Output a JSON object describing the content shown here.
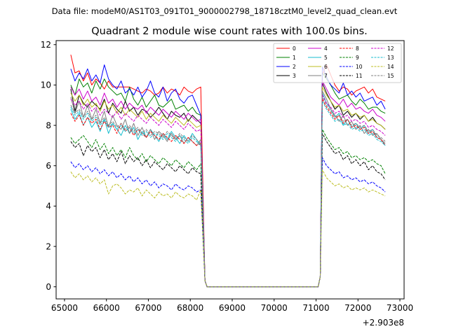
{
  "figure": {
    "header": "Data file: modeM0/AS1T03_091T01_9000002798_18718cztM0_level2_quad_clean.evt",
    "title": "Quadrant 2 module wise count rates with 100.0s bins.",
    "x_offset_label": "+2.903e8"
  },
  "chart_data": {
    "type": "line",
    "title": "Quadrant 2 module wise count rates with 100.0s bins.",
    "xlabel": "",
    "ylabel": "",
    "x_offset": 290300000,
    "xlim": [
      64800,
      73100
    ],
    "ylim": [
      -0.6,
      12.2
    ],
    "xticks": [
      65000,
      66000,
      67000,
      68000,
      69000,
      70000,
      71000,
      72000,
      73000
    ],
    "xtick_labels": [
      "65000",
      "66000",
      "67000",
      "68000",
      "69000",
      "70000",
      "71000",
      "72000",
      "73000"
    ],
    "yticks": [
      0,
      2,
      4,
      6,
      8,
      10,
      12
    ],
    "ytick_labels": [
      "0",
      "2",
      "4",
      "6",
      "8",
      "10",
      "12"
    ],
    "bin_seconds": 100,
    "segments": [
      {
        "start": 65150,
        "end": 68250,
        "count": 32
      },
      {
        "start": 71150,
        "end": 72650,
        "count": 16
      }
    ],
    "gap": {
      "drop_at": 68350,
      "zero_start": 68400,
      "zero_end": 71050
    },
    "legend_position": "top-right",
    "series": [
      {
        "name": "0",
        "color": "#ff0000",
        "dash": "solid",
        "seg1": [
          11.5,
          10.6,
          10.7,
          10.2,
          10.6,
          10.0,
          10.3,
          10.1,
          9.8,
          10.2,
          9.9,
          9.9,
          9.9,
          9.9,
          9.9,
          9.8,
          9.7,
          9.6,
          9.8,
          9.7,
          9.5,
          9.6,
          9.9,
          9.6,
          9.8,
          9.7,
          9.5,
          9.9,
          9.7,
          9.6,
          9.8,
          9.9
        ],
        "seg2": [
          10.5,
          11.0,
          10.5,
          10.0,
          9.7,
          9.9,
          9.8,
          9.5,
          9.7,
          9.8,
          9.9,
          9.6,
          9.8,
          9.4,
          9.3,
          9.2
        ]
      },
      {
        "name": "1",
        "color": "#008000",
        "dash": "solid",
        "seg1": [
          10.0,
          9.5,
          10.3,
          9.9,
          10.1,
          9.6,
          10.2,
          9.8,
          10.3,
          9.9,
          9.7,
          9.5,
          9.6,
          9.2,
          9.9,
          9.3,
          9.0,
          9.4,
          8.9,
          9.2,
          9.5,
          9.0,
          8.9,
          9.1,
          9.3,
          8.8,
          8.9,
          9.0,
          8.7,
          8.9,
          8.6,
          8.5
        ],
        "seg2": [
          10.6,
          10.3,
          10.0,
          9.6,
          9.3,
          9.4,
          9.5,
          9.2,
          9.0,
          9.3,
          9.1,
          8.8,
          8.9,
          8.9,
          8.7,
          8.6
        ]
      },
      {
        "name": "2",
        "color": "#0000ff",
        "dash": "solid",
        "seg1": [
          10.8,
          10.2,
          10.6,
          10.3,
          10.8,
          10.2,
          10.5,
          10.1,
          11.0,
          10.3,
          10.0,
          9.8,
          10.2,
          9.6,
          9.8,
          9.5,
          9.9,
          9.4,
          9.7,
          10.2,
          9.6,
          9.4,
          9.9,
          9.2,
          9.6,
          9.8,
          9.3,
          9.1,
          9.4,
          9.5,
          9.0,
          8.5
        ],
        "seg2": [
          10.9,
          10.4,
          10.0,
          9.8,
          9.6,
          10.1,
          9.5,
          9.7,
          9.4,
          9.6,
          9.2,
          9.3,
          9.4,
          9.0,
          9.2,
          8.8
        ]
      },
      {
        "name": "3",
        "color": "#000000",
        "dash": "solid",
        "seg1": [
          9.8,
          8.7,
          9.5,
          9.1,
          8.9,
          9.2,
          9.0,
          8.8,
          9.3,
          8.6,
          9.1,
          8.8,
          8.6,
          9.2,
          8.7,
          8.9,
          8.5,
          8.8,
          8.7,
          8.4,
          8.6,
          8.9,
          8.6,
          8.3,
          8.7,
          8.5,
          8.4,
          8.6,
          8.2,
          8.5,
          8.3,
          8.1
        ],
        "seg2": [
          10.1,
          9.6,
          9.2,
          8.8,
          9.0,
          8.5,
          8.7,
          8.4,
          8.6,
          8.3,
          8.5,
          8.2,
          8.4,
          8.1,
          8.0,
          7.8
        ]
      },
      {
        "name": "4",
        "color": "#cc00cc",
        "dash": "solid",
        "seg1": [
          9.9,
          9.5,
          9.8,
          9.3,
          9.7,
          9.2,
          9.4,
          9.0,
          9.6,
          9.1,
          9.3,
          8.9,
          9.2,
          8.8,
          9.1,
          8.9,
          8.8,
          9.0,
          8.6,
          8.9,
          8.7,
          8.5,
          8.8,
          8.6,
          8.4,
          8.7,
          8.5,
          8.3,
          8.6,
          8.4,
          8.2,
          8.3
        ],
        "seg2": [
          10.2,
          9.8,
          9.4,
          9.2,
          9.0,
          9.3,
          8.9,
          9.1,
          8.8,
          8.9,
          8.7,
          8.6,
          8.8,
          8.5,
          8.4,
          8.2
        ]
      },
      {
        "name": "5",
        "color": "#17becf",
        "dash": "solid",
        "seg1": [
          8.8,
          8.3,
          8.6,
          8.0,
          8.4,
          7.9,
          8.2,
          7.7,
          8.3,
          7.6,
          8.1,
          7.8,
          7.5,
          8.0,
          7.6,
          7.9,
          7.3,
          7.7,
          7.4,
          7.8,
          7.5,
          7.2,
          7.6,
          7.3,
          7.7,
          7.4,
          7.1,
          7.5,
          7.2,
          7.6,
          7.3,
          7.0
        ],
        "seg2": [
          9.6,
          9.1,
          8.8,
          8.4,
          8.6,
          8.0,
          8.3,
          7.9,
          8.1,
          7.8,
          8.0,
          7.6,
          7.8,
          7.4,
          7.3,
          7.0
        ]
      },
      {
        "name": "6",
        "color": "#bcbd22",
        "dash": "solid",
        "seg1": [
          9.6,
          9.2,
          9.5,
          9.0,
          9.3,
          8.9,
          9.1,
          8.7,
          9.2,
          8.8,
          9.0,
          8.6,
          8.9,
          8.5,
          8.8,
          8.6,
          8.4,
          8.7,
          8.3,
          8.6,
          8.4,
          8.2,
          8.5,
          8.3,
          8.1,
          8.4,
          8.2,
          8.0,
          8.3,
          8.1,
          7.9,
          8.0
        ],
        "seg2": [
          9.9,
          9.5,
          9.2,
          8.9,
          9.0,
          8.7,
          8.8,
          8.5,
          8.6,
          8.4,
          8.5,
          8.2,
          8.3,
          8.1,
          8.0,
          7.8
        ]
      },
      {
        "name": "7",
        "color": "#7f7f7f",
        "dash": "solid",
        "seg1": [
          9.4,
          8.6,
          9.2,
          8.4,
          9.0,
          8.3,
          8.8,
          8.1,
          8.7,
          7.9,
          8.5,
          8.0,
          7.8,
          8.3,
          7.6,
          8.1,
          7.5,
          7.9,
          7.4,
          7.8,
          7.3,
          7.7,
          7.5,
          7.2,
          7.6,
          7.3,
          7.5,
          7.1,
          7.4,
          7.2,
          7.0,
          7.3
        ],
        "seg2": [
          9.7,
          9.3,
          8.8,
          8.5,
          8.2,
          8.5,
          8.0,
          8.2,
          7.8,
          8.0,
          7.6,
          7.8,
          7.5,
          7.6,
          7.3,
          7.1
        ]
      },
      {
        "name": "8",
        "color": "#ff0000",
        "dash": "dashed",
        "seg1": [
          8.6,
          8.2,
          8.5,
          8.0,
          8.4,
          8.1,
          8.3,
          7.8,
          8.2,
          7.9,
          8.0,
          7.6,
          8.1,
          7.7,
          7.9,
          7.5,
          7.8,
          7.6,
          7.4,
          7.7,
          7.5,
          7.3,
          7.6,
          7.4,
          7.2,
          7.5,
          7.3,
          7.1,
          7.4,
          7.2,
          7.0,
          7.1
        ],
        "seg2": [
          9.3,
          8.9,
          8.6,
          8.3,
          8.5,
          8.1,
          8.3,
          7.9,
          8.0,
          7.8,
          7.9,
          7.6,
          7.7,
          7.4,
          7.3,
          7.0
        ]
      },
      {
        "name": "9",
        "color": "#008000",
        "dash": "dashed",
        "seg1": [
          7.4,
          7.1,
          7.3,
          7.5,
          7.2,
          6.9,
          7.3,
          6.8,
          7.1,
          6.6,
          6.9,
          6.5,
          6.8,
          6.4,
          6.9,
          6.5,
          6.3,
          6.6,
          6.2,
          6.5,
          6.3,
          6.1,
          6.4,
          6.2,
          6.0,
          6.3,
          6.1,
          5.9,
          6.2,
          6.0,
          5.8,
          6.1
        ],
        "seg2": [
          7.8,
          7.4,
          7.1,
          6.8,
          6.9,
          6.6,
          6.7,
          6.4,
          6.5,
          6.3,
          6.4,
          6.2,
          6.3,
          6.1,
          6.0,
          5.6
        ]
      },
      {
        "name": "10",
        "color": "#0000ff",
        "dash": "dashed",
        "seg1": [
          6.2,
          5.9,
          6.1,
          5.8,
          6.0,
          5.7,
          5.9,
          5.6,
          5.8,
          5.5,
          5.7,
          5.4,
          5.6,
          5.3,
          5.5,
          5.2,
          5.4,
          5.1,
          5.3,
          5.0,
          5.2,
          4.9,
          5.1,
          5.0,
          4.8,
          5.1,
          4.9,
          4.8,
          5.0,
          4.9,
          4.7,
          4.8
        ],
        "seg2": [
          6.4,
          6.0,
          5.8,
          5.6,
          5.7,
          5.4,
          5.5,
          5.3,
          5.4,
          5.2,
          5.3,
          5.1,
          5.2,
          5.0,
          4.9,
          4.7
        ]
      },
      {
        "name": "11",
        "color": "#000000",
        "dash": "dashed",
        "seg1": [
          7.2,
          6.9,
          7.1,
          6.5,
          7.0,
          6.7,
          6.9,
          6.4,
          6.8,
          6.3,
          6.6,
          6.2,
          6.7,
          6.1,
          6.5,
          6.2,
          6.4,
          6.0,
          6.3,
          5.9,
          6.2,
          6.0,
          5.8,
          6.1,
          5.9,
          5.7,
          6.0,
          5.8,
          5.6,
          5.9,
          5.7,
          5.6
        ],
        "seg2": [
          7.6,
          7.2,
          6.9,
          6.6,
          6.7,
          6.3,
          6.5,
          6.1,
          6.3,
          6.0,
          6.2,
          5.8,
          6.0,
          5.7,
          5.6,
          5.3
        ]
      },
      {
        "name": "12",
        "color": "#cc00cc",
        "dash": "dashed",
        "seg1": [
          9.3,
          9.0,
          9.2,
          8.8,
          9.1,
          8.7,
          8.9,
          8.5,
          8.8,
          8.6,
          8.4,
          8.7,
          8.3,
          8.6,
          8.4,
          8.2,
          8.5,
          8.3,
          8.1,
          8.4,
          8.2,
          8.0,
          8.3,
          8.1,
          7.9,
          8.2,
          8.0,
          7.8,
          8.1,
          7.9,
          7.7,
          7.8
        ],
        "seg2": [
          9.5,
          9.1,
          8.9,
          8.6,
          8.7,
          8.4,
          8.5,
          8.2,
          8.3,
          8.1,
          8.2,
          7.9,
          8.0,
          7.8,
          7.7,
          7.5
        ]
      },
      {
        "name": "13",
        "color": "#17becf",
        "dash": "dashed",
        "seg1": [
          8.9,
          8.5,
          8.7,
          8.3,
          8.6,
          8.2,
          8.4,
          8.0,
          8.3,
          7.9,
          8.1,
          7.8,
          8.0,
          7.7,
          7.9,
          7.6,
          7.8,
          7.5,
          7.7,
          7.4,
          7.6,
          7.5,
          7.3,
          7.6,
          7.4,
          7.2,
          7.5,
          7.3,
          7.1,
          7.4,
          7.2,
          7.0
        ],
        "seg2": [
          9.2,
          8.8,
          8.5,
          8.2,
          8.3,
          8.0,
          8.1,
          7.8,
          7.9,
          7.7,
          7.8,
          7.5,
          7.6,
          7.3,
          7.2,
          7.0
        ]
      },
      {
        "name": "14",
        "color": "#bcbd22",
        "dash": "dashed",
        "seg1": [
          5.7,
          5.4,
          5.6,
          5.3,
          5.5,
          5.2,
          5.4,
          5.1,
          5.3,
          4.6,
          5.0,
          5.1,
          4.9,
          4.6,
          4.8,
          4.7,
          4.9,
          4.5,
          4.8,
          4.6,
          4.4,
          4.7,
          4.5,
          4.6,
          4.4,
          4.7,
          4.5,
          4.4,
          4.6,
          4.5,
          4.3,
          4.8
        ],
        "seg2": [
          5.8,
          5.4,
          5.2,
          5.0,
          5.1,
          4.9,
          5.0,
          4.8,
          4.9,
          4.8,
          4.9,
          4.7,
          4.8,
          4.7,
          4.6,
          4.5
        ]
      },
      {
        "name": "15",
        "color": "#7f7f7f",
        "dash": "dashed",
        "seg1": [
          9.0,
          8.6,
          8.8,
          8.4,
          8.7,
          8.3,
          8.5,
          8.1,
          8.4,
          8.0,
          8.2,
          7.9,
          8.1,
          7.8,
          8.0,
          7.7,
          7.9,
          7.6,
          7.8,
          7.5,
          7.7,
          7.6,
          7.4,
          7.7,
          7.5,
          7.3,
          7.6,
          7.4,
          7.2,
          7.5,
          7.3,
          7.1
        ],
        "seg2": [
          9.4,
          9.0,
          8.7,
          8.4,
          8.5,
          8.2,
          8.3,
          8.0,
          8.1,
          7.9,
          8.0,
          7.7,
          7.8,
          7.5,
          7.4,
          7.2
        ]
      }
    ]
  }
}
